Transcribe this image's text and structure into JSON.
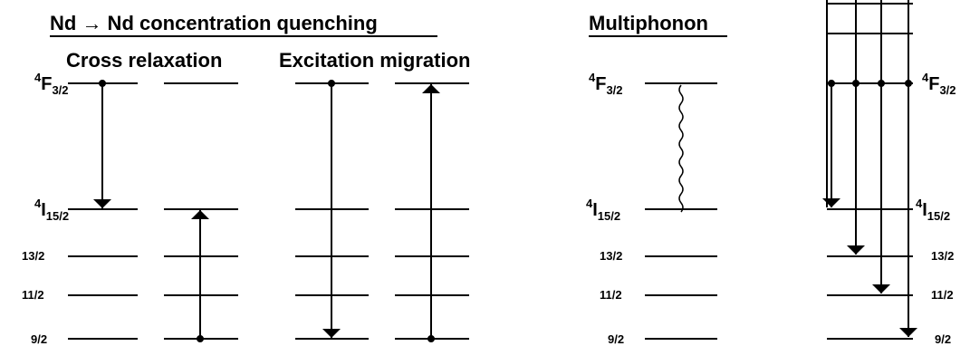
{
  "headings": {
    "concentration": "Nd → Nd concentration quenching",
    "cross": "Cross relaxation",
    "migration": "Excitation migration",
    "multiphonon": "Multiphonon"
  },
  "levels": {
    "f": {
      "sup": "4",
      "main": "F",
      "sub": "3/2"
    },
    "i": {
      "sup": "4",
      "main": "I",
      "sub": "15/2"
    },
    "l13": "13/2",
    "l11": "11/2",
    "l9": "9/2"
  },
  "colors": {
    "ink": "#000000",
    "background": "#ffffff"
  }
}
